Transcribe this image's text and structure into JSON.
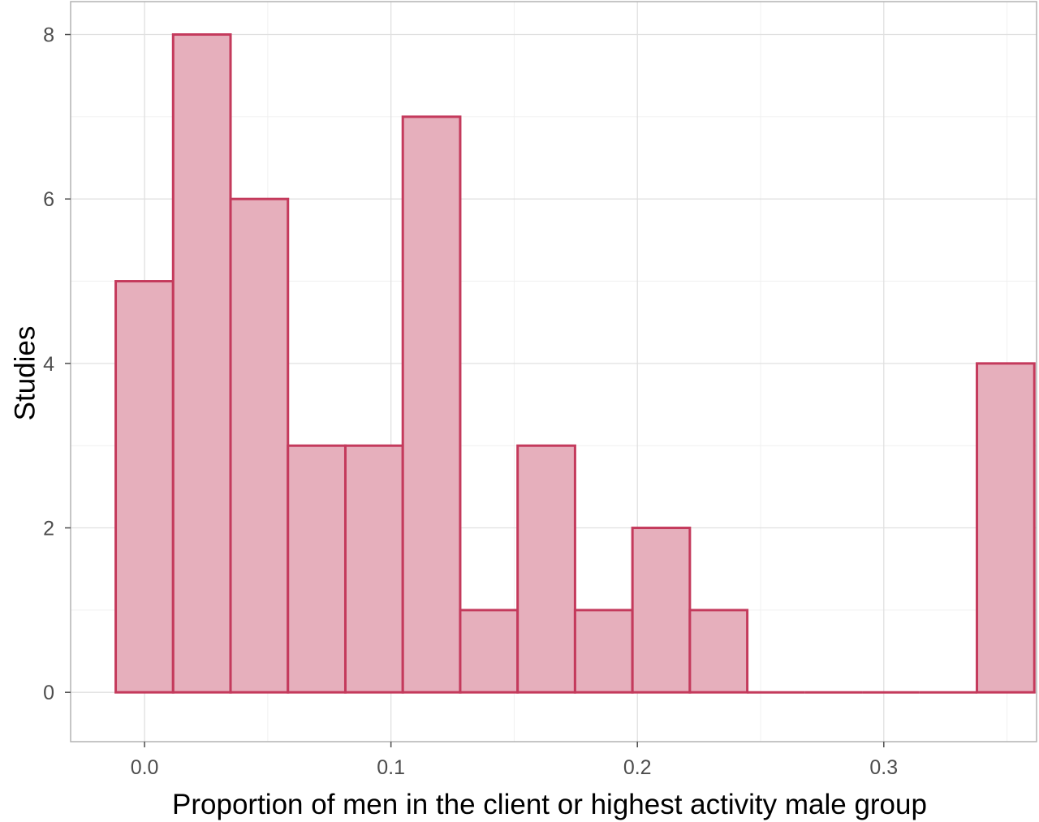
{
  "chart_data": {
    "type": "bar",
    "subtype": "histogram",
    "xlabel": "Proportion of men in the client or highest activity male group",
    "ylabel": "Studies",
    "xlim": [
      -0.03,
      0.362
    ],
    "ylim": [
      -0.6,
      8.4
    ],
    "bin_width": 0.0233,
    "bins": [
      {
        "start": -0.0117,
        "end": 0.0116,
        "count": 5
      },
      {
        "start": 0.0116,
        "end": 0.0349,
        "count": 8
      },
      {
        "start": 0.0349,
        "end": 0.0582,
        "count": 6
      },
      {
        "start": 0.0582,
        "end": 0.0815,
        "count": 3
      },
      {
        "start": 0.0815,
        "end": 0.1048,
        "count": 3
      },
      {
        "start": 0.1048,
        "end": 0.1281,
        "count": 7
      },
      {
        "start": 0.1281,
        "end": 0.1514,
        "count": 1
      },
      {
        "start": 0.1514,
        "end": 0.1747,
        "count": 3
      },
      {
        "start": 0.1747,
        "end": 0.198,
        "count": 1
      },
      {
        "start": 0.198,
        "end": 0.2213,
        "count": 2
      },
      {
        "start": 0.2213,
        "end": 0.2446,
        "count": 1
      },
      {
        "start": 0.2446,
        "end": 0.2679,
        "count": 0
      },
      {
        "start": 0.2679,
        "end": 0.2912,
        "count": 0
      },
      {
        "start": 0.2912,
        "end": 0.3145,
        "count": 0
      },
      {
        "start": 0.3145,
        "end": 0.3378,
        "count": 0
      },
      {
        "start": 0.3378,
        "end": 0.3611,
        "count": 4
      }
    ],
    "x_ticks": [
      {
        "value": 0.0,
        "label": "0.0"
      },
      {
        "value": 0.1,
        "label": "0.1"
      },
      {
        "value": 0.2,
        "label": "0.2"
      },
      {
        "value": 0.3,
        "label": "0.3"
      }
    ],
    "y_ticks": [
      {
        "value": 0,
        "label": "0"
      },
      {
        "value": 2,
        "label": "2"
      },
      {
        "value": 4,
        "label": "4"
      },
      {
        "value": 6,
        "label": "6"
      },
      {
        "value": 8,
        "label": "8"
      }
    ],
    "x_minor": [
      0.05,
      0.15,
      0.25,
      0.35
    ],
    "y_minor": [
      1,
      3,
      5,
      7
    ],
    "grid": true,
    "legend": "none",
    "colors": {
      "bar_fill": "#e6afbc",
      "bar_stroke": "#c43a5c"
    }
  }
}
